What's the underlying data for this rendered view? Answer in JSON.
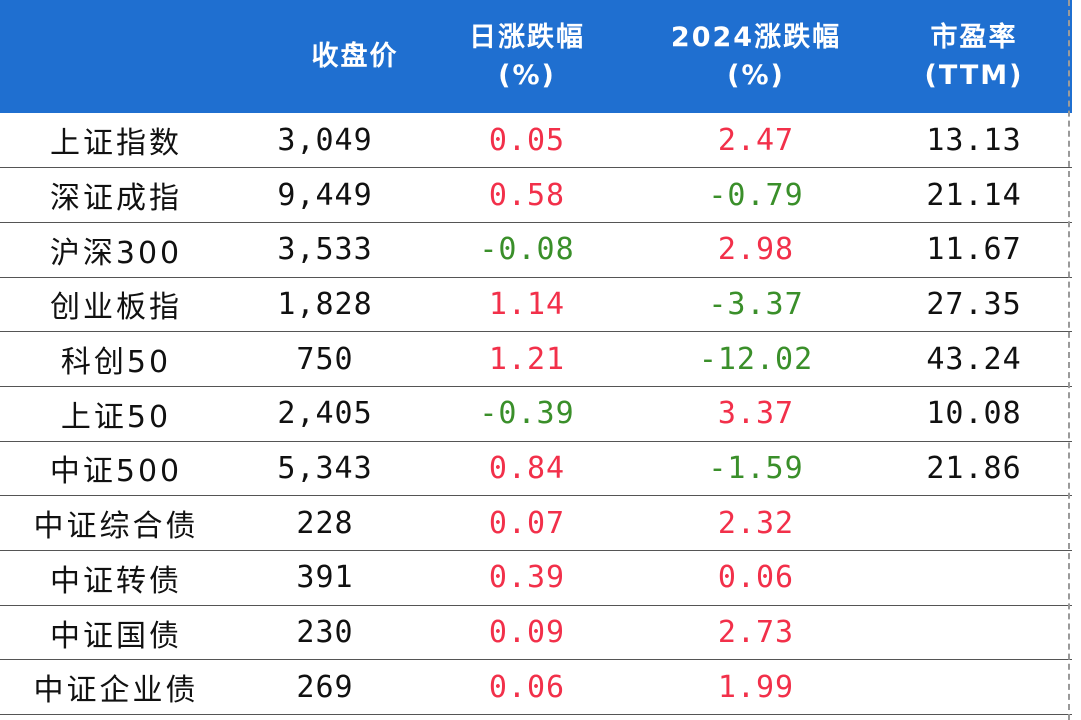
{
  "header": {
    "name": "",
    "close": "收盘价",
    "daily": [
      "日涨跌幅",
      "(%)"
    ],
    "ytd": [
      "2024涨跌幅",
      "(%)"
    ],
    "pe": [
      "市盈率",
      "(TTM)"
    ]
  },
  "rows": [
    {
      "name": "上证指数",
      "close": "3,049",
      "daily": "0.05",
      "ytd": "2.47",
      "pe": "13.13"
    },
    {
      "name": "深证成指",
      "close": "9,449",
      "daily": "0.58",
      "ytd": "-0.79",
      "pe": "21.14"
    },
    {
      "name": "沪深300",
      "close": "3,533",
      "daily": "-0.08",
      "ytd": "2.98",
      "pe": "11.67"
    },
    {
      "name": "创业板指",
      "close": "1,828",
      "daily": "1.14",
      "ytd": "-3.37",
      "pe": "27.35"
    },
    {
      "name": "科创50",
      "close": "750",
      "daily": "1.21",
      "ytd": "-12.02",
      "pe": "43.24"
    },
    {
      "name": "上证50",
      "close": "2,405",
      "daily": "-0.39",
      "ytd": "3.37",
      "pe": "10.08"
    },
    {
      "name": "中证500",
      "close": "5,343",
      "daily": "0.84",
      "ytd": "-1.59",
      "pe": "21.86"
    },
    {
      "name": "中证综合债",
      "close": "228",
      "daily": "0.07",
      "ytd": "2.32",
      "pe": ""
    },
    {
      "name": "中证转债",
      "close": "391",
      "daily": "0.39",
      "ytd": "0.06",
      "pe": ""
    },
    {
      "name": "中证国债",
      "close": "230",
      "daily": "0.09",
      "ytd": "2.73",
      "pe": ""
    },
    {
      "name": "中证企业债",
      "close": "269",
      "daily": "0.06",
      "ytd": "1.99",
      "pe": ""
    }
  ],
  "colors": {
    "header_bg": "#1f6fd0",
    "positive": "#f2304a",
    "negative": "#3a8f2a"
  }
}
